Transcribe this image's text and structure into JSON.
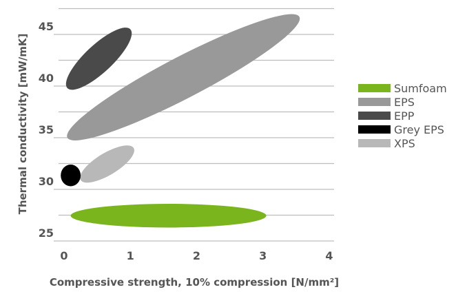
{
  "chart_data": {
    "type": "bubble-ellipse",
    "title": "",
    "xlabel": "Compressive strength, 10% compression [N/mm²]",
    "ylabel": "Thermal conductivity [mW/mK]",
    "xlim": [
      0,
      4
    ],
    "ylim": [
      25,
      47
    ],
    "x_ticks": [
      "0",
      "1",
      "2",
      "3",
      "4"
    ],
    "y_ticks": [
      "25",
      "30",
      "35",
      "40",
      "45"
    ],
    "grid": "horizontal",
    "legend_position": "right",
    "legend": [
      "Sumfoam",
      "EPS",
      "EPP",
      "Grey EPS",
      "XPS"
    ],
    "series": [
      {
        "name": "Sumfoam",
        "color": "#7ab51d",
        "x_range": [
          0.1,
          3.05
        ],
        "y_range": [
          26.3,
          28.6
        ]
      },
      {
        "name": "EPS",
        "color": "#999999",
        "x_range": [
          0.05,
          3.55
        ],
        "y_range": [
          35.0,
          46.7
        ]
      },
      {
        "name": "EPP",
        "color": "#4a4a4a",
        "x_range": [
          0.05,
          1.0
        ],
        "y_range": [
          39.8,
          45.5
        ]
      },
      {
        "name": "Grey EPS",
        "color": "#000000",
        "x_range": [
          -0.05,
          0.25
        ],
        "y_range": [
          30.3,
          32.4
        ]
      },
      {
        "name": "XPS",
        "color": "#b8b8b8",
        "x_range": [
          0.25,
          1.05
        ],
        "y_range": [
          30.9,
          34.0
        ]
      }
    ]
  }
}
